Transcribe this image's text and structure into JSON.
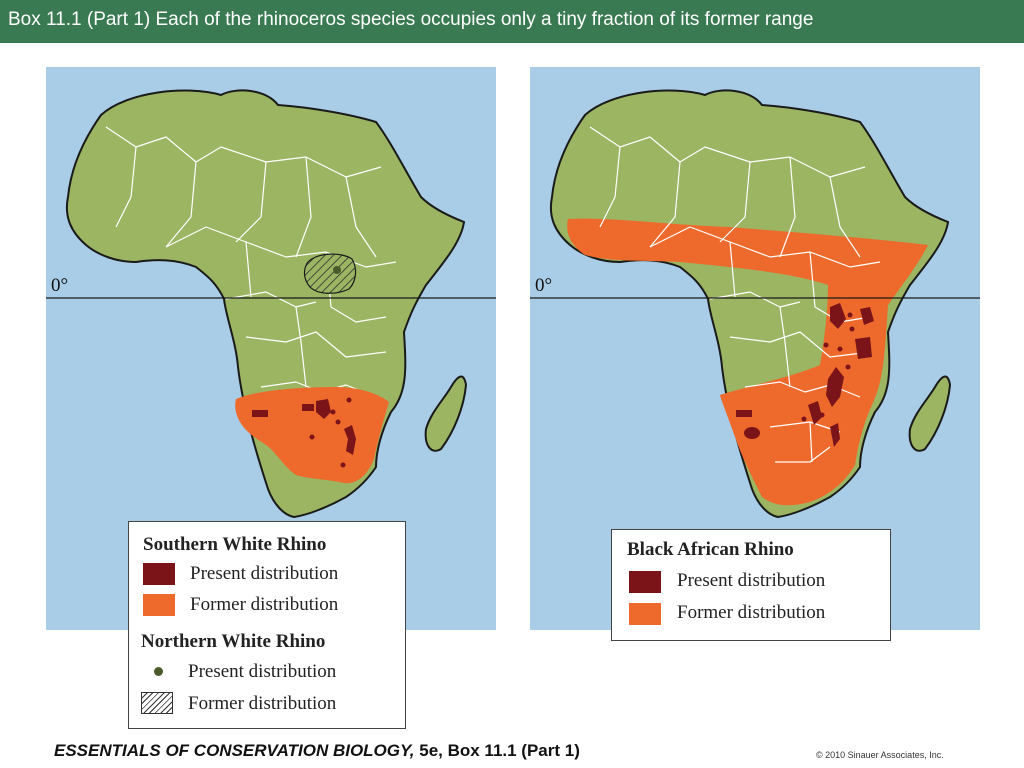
{
  "title": "Box 11.1 (Part 1)  Each of the rhinoceros species occupies only a tiny fraction of its former range",
  "colors": {
    "header": "#3a7a52",
    "ocean": "#a9cde6",
    "land": "#9bb562",
    "present": "#7a1418",
    "former": "#ee6a2c"
  },
  "maps": {
    "left": {
      "equator_label": "0°",
      "legend": {
        "southern_heading": "Southern White Rhino",
        "southern_present": "Present distribution",
        "southern_former": "Former distribution",
        "northern_heading": "Northern White Rhino",
        "northern_present": "Present distribution",
        "northern_former": "Former distribution"
      }
    },
    "right": {
      "equator_label": "0°",
      "legend": {
        "heading": "Black African Rhino",
        "present": "Present distribution",
        "former": "Former distribution"
      }
    }
  },
  "footer": {
    "book": "ESSENTIALS OF CONSERVATION BIOLOGY,",
    "edition": " 5e, Box 11.1 (Part 1)",
    "copyright": "© 2010 Sinauer Associates, Inc."
  }
}
